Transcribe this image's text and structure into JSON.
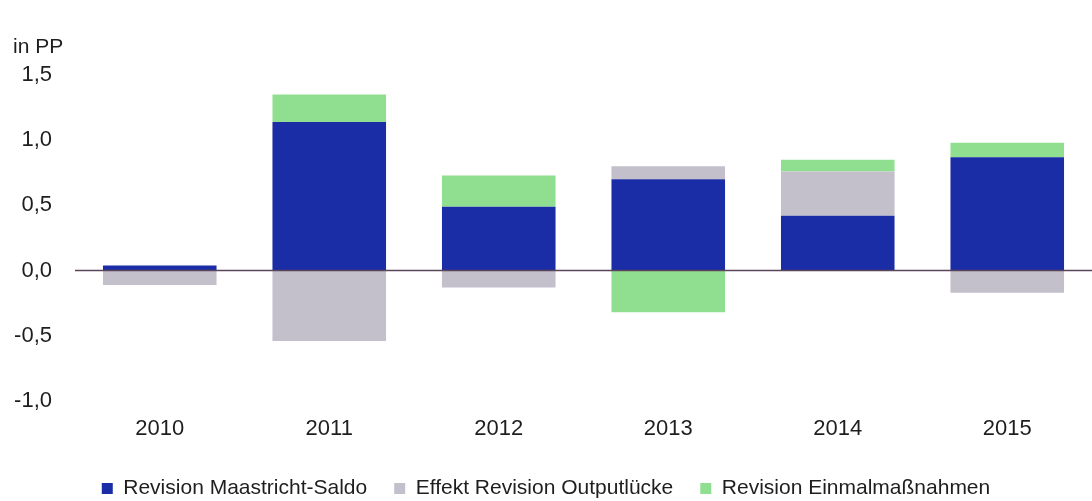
{
  "chart_data": {
    "type": "bar",
    "ylabel": "in PP",
    "categories": [
      "2010",
      "2011",
      "2012",
      "2013",
      "2014",
      "2015"
    ],
    "series": [
      {
        "name": "Revision Maastricht-Saldo",
        "color": "#1a2ca6",
        "values": [
          0.04,
          1.14,
          0.49,
          0.7,
          0.42,
          0.87
        ]
      },
      {
        "name": "Effekt Revision Outputlücke",
        "color": "#c3bfcb",
        "values": [
          -0.11,
          -0.54,
          -0.13,
          0.1,
          0.34,
          -0.17
        ]
      },
      {
        "name": "Revision Einmalmaßnahmen",
        "color": "#90df90",
        "values": [
          0,
          0.21,
          0.24,
          -0.32,
          0.09,
          0.11
        ]
      }
    ],
    "stacked": true,
    "ylim": [
      -1.0,
      1.5
    ],
    "yticks": [
      {
        "value": -1.0,
        "label": "-1,0"
      },
      {
        "value": -0.5,
        "label": "-0,5"
      },
      {
        "value": 0,
        "label": "0,0"
      },
      {
        "value": 0.5,
        "label": "0,5"
      },
      {
        "value": 1.0,
        "label": "1,0"
      },
      {
        "value": 1.5,
        "label": "1,5"
      }
    ],
    "legend": "bottom"
  }
}
